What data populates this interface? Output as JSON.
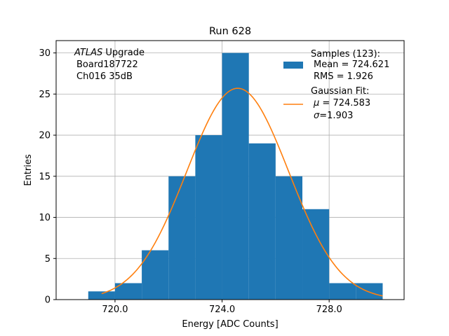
{
  "chart_data": {
    "type": "bar",
    "title": "Run 628",
    "xlabel": "Energy [ADC Counts]",
    "ylabel": "Entries",
    "xlim": [
      717.8,
      730.8
    ],
    "ylim": [
      0,
      31.5
    ],
    "xticks": [
      720,
      724,
      728
    ],
    "xtick_labels": [
      "720.0",
      "724.0",
      "728.0"
    ],
    "yticks": [
      0,
      5,
      10,
      15,
      20,
      25,
      30
    ],
    "ytick_labels": [
      "0",
      "5",
      "10",
      "15",
      "20",
      "25",
      "30"
    ],
    "grid": true,
    "histogram": {
      "bin_edges": [
        719,
        720,
        721,
        722,
        723,
        724,
        725,
        726,
        727,
        728,
        729,
        730
      ],
      "counts": [
        1,
        2,
        6,
        15,
        20,
        30,
        19,
        15,
        11,
        2,
        2
      ],
      "color": "#1f77b4"
    },
    "fit": {
      "mu": 724.583,
      "sigma": 1.903,
      "amplitude": 25.7,
      "x_range": [
        719.5,
        730.0
      ],
      "color": "#ff7f0e"
    },
    "annotation": {
      "line1_italic": "ATLAS",
      "line1_rest": " Upgrade",
      "line2": "Board187722",
      "line3": "Ch016 35dB"
    },
    "legend": {
      "placement": "top-right",
      "samples_title": "Samples (123):",
      "samples_mean": "Mean = 724.621",
      "samples_rms": "RMS = 1.926",
      "fit_title": "Gaussian Fit:",
      "fit_mu_symbol": "μ",
      "fit_mu_text": " = 724.583",
      "fit_sigma_symbol": "σ",
      "fit_sigma_text": "=1.903"
    }
  }
}
